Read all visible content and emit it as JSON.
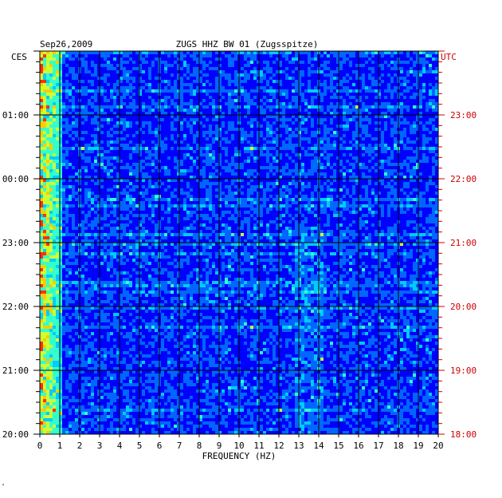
{
  "chart_data": {
    "type": "heatmap",
    "title": "ZUGS HHZ BW 01 (Zugsspitze)",
    "date": "Sep26,2009",
    "xlabel": "FREQUENCY (HZ)",
    "left_timezone": "CES",
    "right_timezone": "UTC",
    "xlim": [
      0,
      20
    ],
    "x_ticks": [
      "0",
      "1",
      "2",
      "3",
      "4",
      "5",
      "6",
      "7",
      "8",
      "9",
      "10",
      "11",
      "12",
      "13",
      "14",
      "15",
      "16",
      "17",
      "18",
      "19",
      "20"
    ],
    "left_hour_labels": [
      "01:00",
      "00:00",
      "23:00",
      "22:00",
      "21:00",
      "20:00"
    ],
    "right_hour_labels": [
      "23:00",
      "22:00",
      "21:00",
      "20:00",
      "19:00",
      "18:00"
    ],
    "time_span_hours": 6,
    "grid": true,
    "colormap": [
      "#0000aa",
      "#0000ff",
      "#0066ff",
      "#00ccff",
      "#33ffcc",
      "#ccff33",
      "#ffcc00",
      "#ff3300"
    ],
    "low_frequency_band_hz": [
      0,
      1
    ],
    "notable_band_hz": [
      12.8,
      14.2
    ]
  },
  "colors": {
    "left_labels": "#000000",
    "right_labels": "#cc0000",
    "background_field": "#0000cc"
  },
  "footer_mark": "\""
}
